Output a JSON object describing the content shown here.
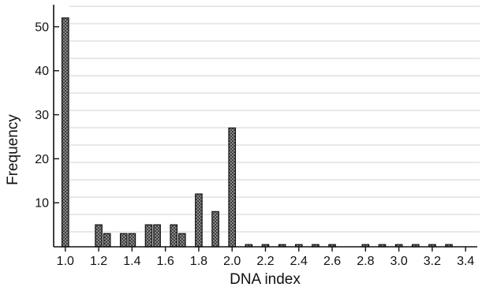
{
  "chart_data": {
    "type": "bar",
    "xlabel": "DNA index",
    "ylabel": "Frequency",
    "x_ticks": [
      "1.0",
      "1.2",
      "1.4",
      "1.6",
      "1.8",
      "2.0",
      "2.2",
      "2.4",
      "2.6",
      "2.8",
      "3.0",
      "3.2",
      "3.4"
    ],
    "y_ticks": [
      "10",
      "20",
      "30",
      "40",
      "50"
    ],
    "xlim": [
      0.93,
      3.47
    ],
    "ylim": [
      0,
      55
    ],
    "bar_width": 0.04,
    "grid": false,
    "bars": [
      {
        "x": 1.0,
        "value": 52
      },
      {
        "x": 1.2,
        "value": 5
      },
      {
        "x": 1.25,
        "value": 3
      },
      {
        "x": 1.35,
        "value": 3
      },
      {
        "x": 1.4,
        "value": 3
      },
      {
        "x": 1.5,
        "value": 5
      },
      {
        "x": 1.55,
        "value": 5
      },
      {
        "x": 1.65,
        "value": 5
      },
      {
        "x": 1.7,
        "value": 3
      },
      {
        "x": 1.8,
        "value": 12
      },
      {
        "x": 1.9,
        "value": 8
      },
      {
        "x": 2.0,
        "value": 27
      },
      {
        "x": 2.1,
        "value": 0.5
      },
      {
        "x": 2.2,
        "value": 0.5
      },
      {
        "x": 2.3,
        "value": 0.5
      },
      {
        "x": 2.4,
        "value": 0.5
      },
      {
        "x": 2.5,
        "value": 0.5
      },
      {
        "x": 2.6,
        "value": 0.5
      },
      {
        "x": 2.8,
        "value": 0.5
      },
      {
        "x": 2.9,
        "value": 0.5
      },
      {
        "x": 3.0,
        "value": 0.5
      },
      {
        "x": 3.1,
        "value": 0.5
      },
      {
        "x": 3.2,
        "value": 0.5
      },
      {
        "x": 3.3,
        "value": 0.5
      }
    ],
    "colors": {
      "bar_fill": "#6e6e6e",
      "bar_stroke": "#111111",
      "axis": "#111111",
      "bleed_through": "#d2d2d2"
    }
  }
}
